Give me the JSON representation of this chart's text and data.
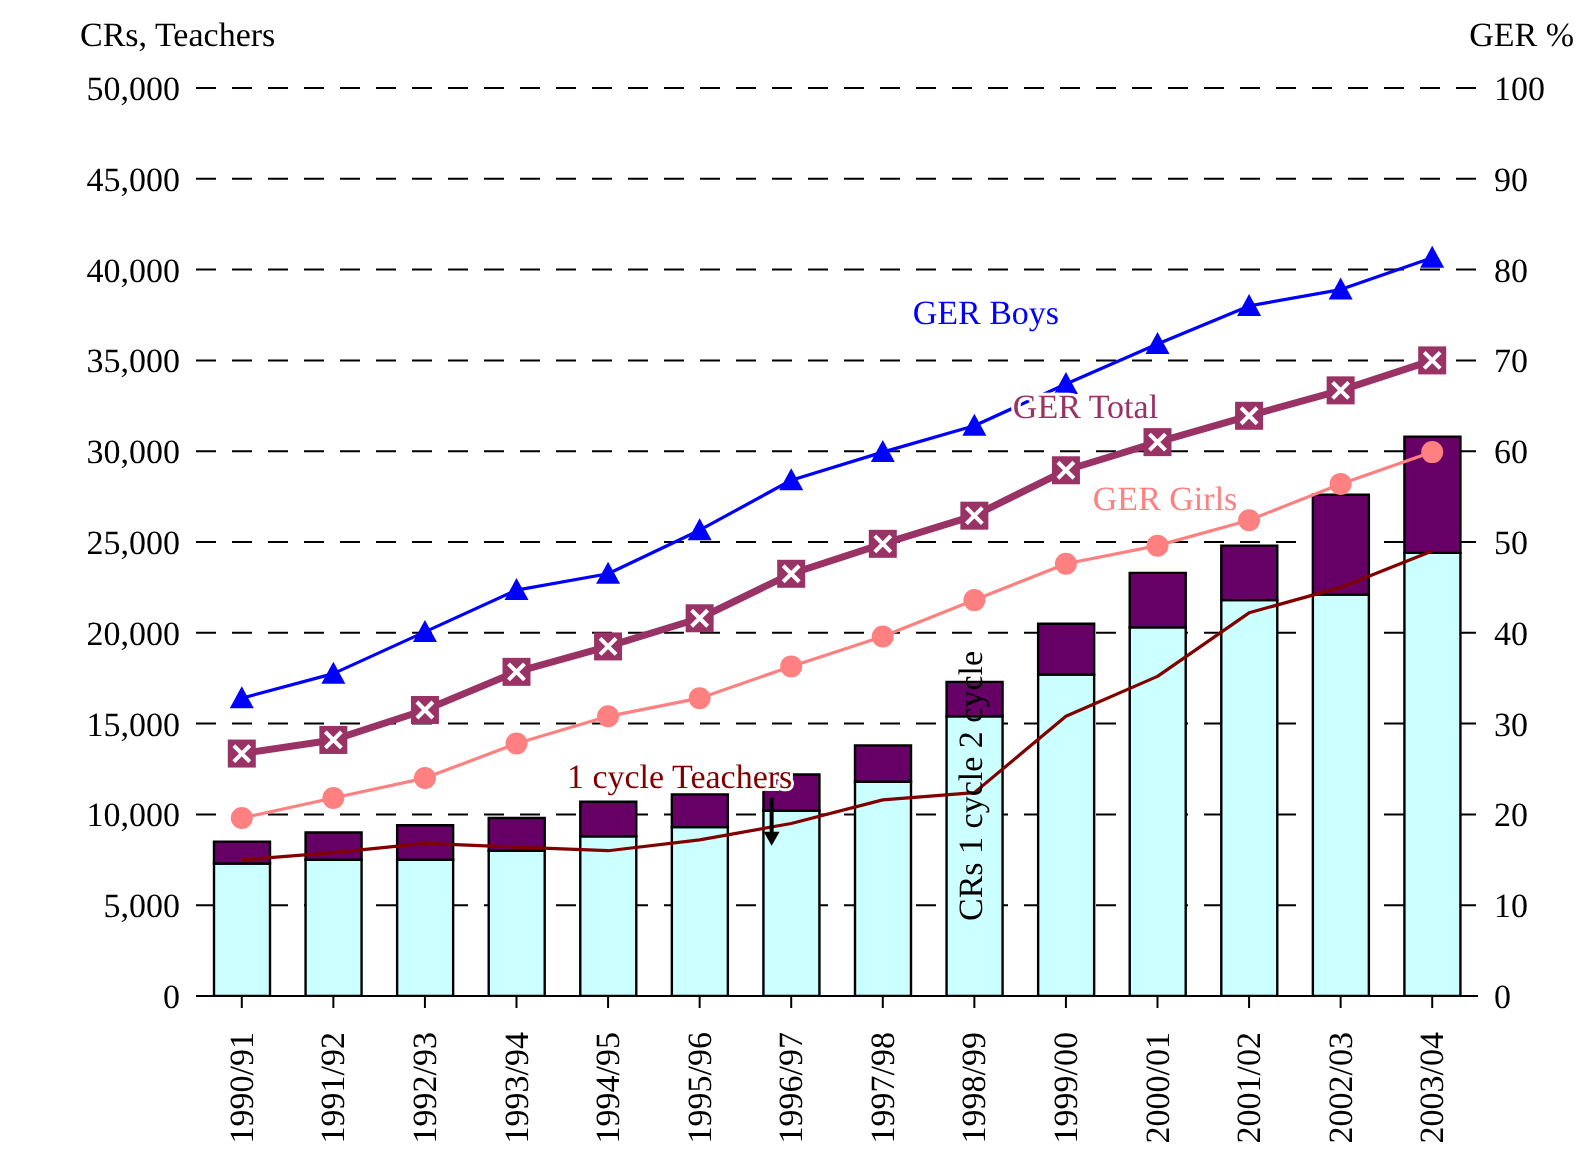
{
  "chart_data": {
    "type": "bar",
    "stacked": true,
    "ylabel": "CRs, Teachers",
    "y2label": "GER %",
    "categories": [
      "1990/91",
      "1991/92",
      "1992/93",
      "1993/94",
      "1994/95",
      "1995/96",
      "1996/97",
      "1997/98",
      "1998/99",
      "1999/00",
      "2000/01",
      "2001/02",
      "2002/03",
      "2003/04"
    ],
    "series": [
      {
        "name": "CRs 1 cycle",
        "color": "#ccffff",
        "values": [
          7300,
          7500,
          7500,
          8000,
          8800,
          9300,
          10200,
          11800,
          15400,
          17700,
          20300,
          21800,
          22100,
          24400
        ]
      },
      {
        "name": "2 cycle",
        "color": "#660066",
        "values": [
          1200,
          1500,
          1900,
          1800,
          1900,
          1800,
          2000,
          2000,
          1900,
          2800,
          3000,
          3000,
          5500,
          6400
        ]
      },
      {
        "name": "1 cycle Teachers",
        "type": "line",
        "color": "#800000",
        "marker": "none",
        "values": [
          7500,
          7900,
          8400,
          8200,
          8000,
          8600,
          9500,
          10800,
          11200,
          15400,
          17600,
          21100,
          22500,
          24500
        ]
      },
      {
        "name": "GER Boys",
        "type": "line",
        "axis": "y2",
        "color": "#0000ff",
        "marker": "triangle",
        "values": [
          32.8,
          35.5,
          40.1,
          44.7,
          46.5,
          51.3,
          56.8,
          59.9,
          62.8,
          67.4,
          71.8,
          76,
          77.8,
          81.3
        ]
      },
      {
        "name": "GER Total",
        "type": "line",
        "axis": "y2",
        "color": "#993366",
        "marker": "square",
        "values": [
          26.7,
          28.2,
          31.5,
          35.7,
          38.5,
          41.6,
          46.5,
          49.8,
          52.9,
          57.9,
          61,
          63.9,
          66.7,
          70
        ]
      },
      {
        "name": "GER Girls",
        "type": "line",
        "axis": "y2",
        "color": "#ff8080",
        "marker": "circle",
        "values": [
          19.6,
          21.8,
          24,
          27.8,
          30.8,
          32.8,
          36.3,
          39.6,
          43.6,
          47.6,
          49.6,
          52.4,
          56.4,
          59.9
        ]
      }
    ],
    "ylim": [
      0,
      50000
    ],
    "yticks": [
      {
        "value": 0,
        "label": "0"
      },
      {
        "value": 5000,
        "label": "5,000"
      },
      {
        "value": 10000,
        "label": "10,000"
      },
      {
        "value": 15000,
        "label": "15,000"
      },
      {
        "value": 20000,
        "label": "20,000"
      },
      {
        "value": 25000,
        "label": "25,000"
      },
      {
        "value": 30000,
        "label": "30,000"
      },
      {
        "value": 35000,
        "label": "35,000"
      },
      {
        "value": 40000,
        "label": "40,000"
      },
      {
        "value": 45000,
        "label": "45,000"
      },
      {
        "value": 50000,
        "label": "50,000"
      }
    ],
    "y2lim": [
      0,
      100
    ],
    "y2ticks": [
      0,
      10,
      20,
      30,
      40,
      50,
      60,
      70,
      80,
      90,
      100
    ],
    "grid": "y",
    "legend": false,
    "line_style": "solid"
  }
}
